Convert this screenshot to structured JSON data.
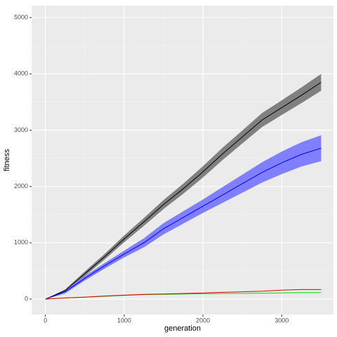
{
  "chart_data": {
    "type": "line",
    "x_label": "generation",
    "y_label": "fitness",
    "x": [
      0,
      250,
      500,
      750,
      1000,
      1250,
      1500,
      1750,
      2000,
      2250,
      2500,
      2750,
      3000,
      3250,
      3500
    ],
    "series": [
      {
        "color": "#000000",
        "band_color": "#808080",
        "values": [
          0,
          150,
          450,
          750,
          1070,
          1370,
          1680,
          1960,
          2260,
          2580,
          2880,
          3180,
          3400,
          3620,
          3850
        ],
        "lower": [
          0,
          130,
          410,
          700,
          1010,
          1300,
          1600,
          1870,
          2160,
          2470,
          2765,
          3055,
          3270,
          3480,
          3700
        ],
        "upper": [
          0,
          170,
          490,
          800,
          1130,
          1440,
          1760,
          2050,
          2360,
          2690,
          2995,
          3305,
          3530,
          3760,
          4000
        ]
      },
      {
        "color": "#0000ff",
        "band_color": "#7f7fff",
        "values": [
          0,
          130,
          370,
          590,
          800,
          1000,
          1250,
          1450,
          1650,
          1850,
          2050,
          2250,
          2420,
          2570,
          2680
        ],
        "lower": [
          0,
          100,
          330,
          540,
          740,
          920,
          1150,
          1340,
          1530,
          1710,
          1890,
          2070,
          2220,
          2355,
          2450
        ],
        "upper": [
          0,
          160,
          410,
          640,
          860,
          1080,
          1350,
          1560,
          1770,
          1990,
          2210,
          2430,
          2620,
          2785,
          2910
        ]
      },
      {
        "color": "#00e000",
        "values": [
          0,
          20,
          35,
          50,
          65,
          80,
          85,
          90,
          95,
          100,
          100,
          105,
          110,
          115,
          115
        ]
      },
      {
        "color": "#e00000",
        "values": [
          0,
          20,
          35,
          55,
          70,
          85,
          90,
          100,
          110,
          120,
          130,
          140,
          160,
          170,
          170
        ]
      }
    ],
    "xlim": [
      -175,
      3657
    ],
    "ylim": [
      -274,
      5212
    ],
    "xticks": [
      0,
      1000,
      2000,
      3000
    ],
    "yticks": [
      0,
      1000,
      2000,
      3000,
      4000,
      5000
    ],
    "grid": true
  }
}
